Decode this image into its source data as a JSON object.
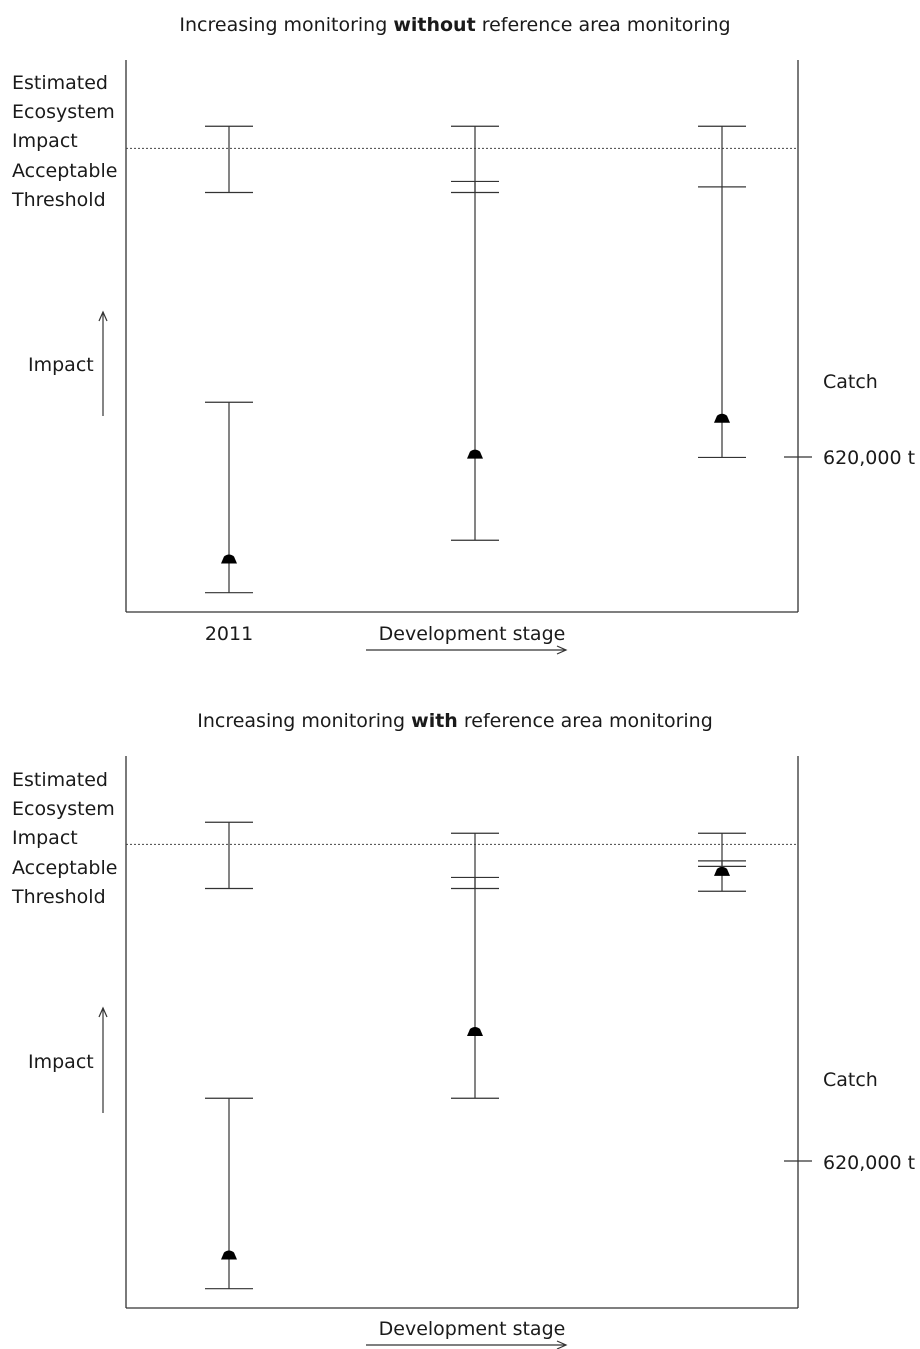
{
  "charts": [
    {
      "title_before": "Increasing monitoring ",
      "title_bold": "without",
      "title_after": " reference area monitoring",
      "left_labels": [
        "Estimated",
        "Ecosystem",
        "Impact",
        "Acceptable",
        "Threshold"
      ],
      "impact_label": "Impact",
      "catch_label": "Catch",
      "catch_tick_label": "620,000 t",
      "first_stage_label": "2011",
      "x_axis_label": "Development stage"
    },
    {
      "title_before": "Increasing monitoring ",
      "title_bold": "with",
      "title_after": " reference area monitoring",
      "left_labels": [
        "Estimated",
        "Ecosystem",
        "Impact",
        "Acceptable",
        "Threshold"
      ],
      "impact_label": "Impact",
      "catch_label": "Catch",
      "catch_tick_label": "620,000 t",
      "first_stage_label": "",
      "x_axis_label": "Development stage"
    }
  ],
  "chart_data": [
    {
      "type": "scatter",
      "title": "Increasing monitoring without reference area monitoring",
      "xlabel": "Development stage",
      "ylabel": "Impact",
      "categories": [
        "2011",
        "",
        ""
      ],
      "threshold": 0.84,
      "catch_reference": 0.27,
      "series": [
        {
          "values": [
            0.095,
            0.285,
            0.35
          ],
          "low": [
            0.035,
            0.13,
            0.28
          ],
          "high": [
            0.38,
            0.78,
            0.77
          ]
        },
        {
          "low": [
            0.76,
            0.76,
            0.77
          ],
          "high": [
            0.88,
            0.88,
            0.88
          ]
        }
      ],
      "ylim": [
        0,
        1
      ]
    },
    {
      "type": "scatter",
      "title": "Increasing monitoring with reference area monitoring",
      "xlabel": "Development stage",
      "ylabel": "Impact",
      "categories": [
        "",
        "",
        ""
      ],
      "threshold": 0.84,
      "catch_reference": 0.27,
      "series": [
        {
          "values": [
            0.095,
            0.5,
            0.79
          ],
          "low": [
            0.035,
            0.38,
            0.755
          ],
          "high": [
            0.38,
            0.78,
            0.81
          ]
        },
        {
          "low": [
            0.76,
            0.76,
            0.8
          ],
          "high": [
            0.88,
            0.86,
            0.86
          ]
        }
      ],
      "ylim": [
        0,
        1
      ]
    }
  ]
}
